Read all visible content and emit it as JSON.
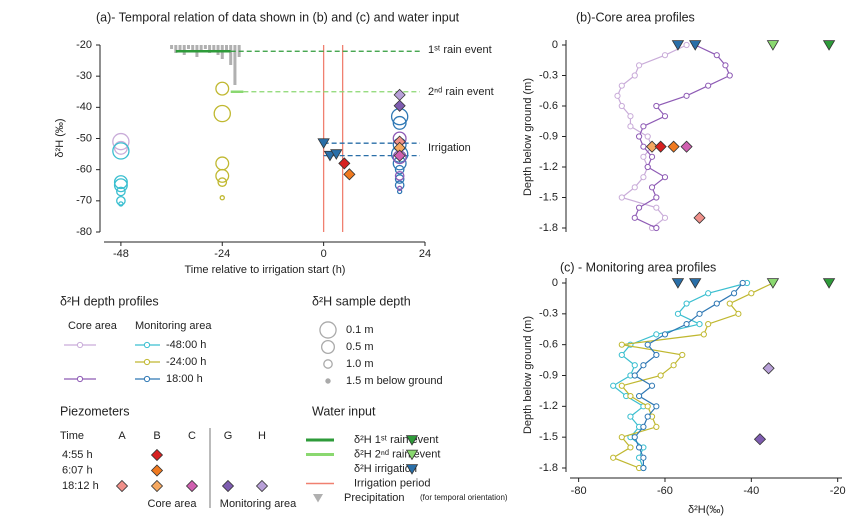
{
  "chart_data": [
    {
      "type": "scatter",
      "title": "(a)- Temporal relation of data shown in (b) and (c) and water input",
      "xlabel": "Time relative to irrigation start (h)",
      "ylabel": "δ²H (‰)",
      "xlim": [
        -52,
        24
      ],
      "xticks": [
        -48,
        -24,
        0,
        24
      ],
      "ylim": [
        -80,
        -20
      ],
      "yticks": [
        -20,
        -30,
        -40,
        -50,
        -60,
        -70,
        -80
      ],
      "series": [
        {
          "color": "#c9acd9",
          "x": [
            -48,
            -48
          ],
          "values": [
            -51,
            -53
          ],
          "depth": [
            0.1,
            0.5
          ]
        },
        {
          "color": "#3bbfd0",
          "x": [
            -48,
            -48,
            -48,
            -48,
            -48,
            -48
          ],
          "values": [
            -54,
            -64,
            -65,
            -67,
            -70,
            -71
          ],
          "depth": [
            0.1,
            0.5,
            0.5,
            1.0,
            1.0,
            1.5
          ]
        },
        {
          "color": "#c0b830",
          "x": [
            -24,
            -24,
            -24,
            -24,
            -24,
            -24
          ],
          "values": [
            -34,
            -42,
            -58,
            -62,
            -64,
            -69
          ],
          "depth": [
            0.5,
            0.1,
            0.5,
            0.5,
            1.0,
            1.5
          ]
        },
        {
          "color": "#2f78b4",
          "x": [
            18,
            18,
            18,
            18,
            18,
            18,
            18,
            18,
            18
          ],
          "values": [
            -43,
            -45,
            -52,
            -55,
            -58,
            -60,
            -63,
            -65,
            -67
          ],
          "depth": [
            0.1,
            0.5,
            0.5,
            0.1,
            0.5,
            1.0,
            1.0,
            1.0,
            1.5
          ]
        },
        {
          "color": "#8e5bb5",
          "x": [
            18,
            18,
            18,
            18
          ],
          "values": [
            -50,
            -56,
            -62,
            -66
          ],
          "depth": [
            0.5,
            0.5,
            1.0,
            1.5
          ]
        }
      ],
      "markers": [
        {
          "marker": "triangle",
          "color": "#2a6fa8",
          "x": [
            0,
            1.5,
            3
          ],
          "values": [
            -51.5,
            -55.5,
            -55
          ]
        },
        {
          "marker": "diamond",
          "color": "#d62020",
          "x": [
            4.9
          ],
          "values": [
            -58
          ]
        },
        {
          "marker": "diamond",
          "color": "#f07a20",
          "x": [
            6.1
          ],
          "values": [
            -61.5
          ]
        },
        {
          "marker": "diamond",
          "color": "#b8a0d8",
          "x": [
            18
          ],
          "values": [
            -36
          ]
        },
        {
          "marker": "diamond",
          "color": "#7e5cb0",
          "x": [
            18
          ],
          "values": [
            -39.5
          ]
        },
        {
          "marker": "diamond",
          "color": "#f0908a",
          "x": [
            18
          ],
          "values": [
            -51
          ]
        },
        {
          "marker": "diamond",
          "color": "#f5a860",
          "x": [
            18
          ],
          "values": [
            -53
          ]
        },
        {
          "marker": "diamond",
          "color": "#d060b0",
          "x": [
            18
          ],
          "values": [
            -55.5
          ]
        }
      ],
      "rain_events": [
        {
          "label": "1ˢᵗ rain event",
          "color": "#2e9b3a",
          "value": -22,
          "x": [
            -35,
            -22
          ]
        },
        {
          "label": "2ⁿᵈ rain event",
          "color": "#8ad870",
          "value": -35,
          "x": [
            -22,
            -19
          ]
        }
      ],
      "irrigation": {
        "label": "Irrigation",
        "color": "#2a6fa8",
        "values": [
          -51.5,
          -55.5
        ]
      },
      "irrigation_period": {
        "color": "#f08070",
        "x": [
          0,
          4.5
        ]
      },
      "precipitation": {
        "color": "#b0b0b0",
        "x": [
          -36,
          -35,
          -34,
          -33,
          -32,
          -31,
          -30,
          -29,
          -28,
          -27,
          -26,
          -25,
          -24,
          -23,
          -22,
          -21,
          -20
        ],
        "values": [
          2,
          4,
          3,
          5,
          2,
          3,
          6,
          3,
          2,
          4,
          3,
          5,
          7,
          3,
          10,
          20,
          6
        ]
      }
    },
    {
      "type": "profile",
      "title": "(b)-Core area profiles",
      "ylabel": "Depth below ground (m)",
      "xlim": [
        -82,
        -19
      ],
      "ylim": [
        -1.8,
        0
      ],
      "yticks": [
        0,
        -0.3,
        -0.6,
        -0.9,
        -1.2,
        -1.5,
        -1.8
      ],
      "depth": [
        0,
        -0.1,
        -0.2,
        -0.3,
        -0.4,
        -0.5,
        -0.6,
        -0.7,
        -0.8,
        -0.9,
        -1,
        -1.1,
        -1.2,
        -1.3,
        -1.4,
        -1.5,
        -1.6,
        -1.7,
        -1.8
      ],
      "series": [
        {
          "color": "#c9acd9",
          "values": [
            -55,
            -60,
            -66,
            -67,
            -70,
            -71,
            -70,
            -68,
            -68,
            -64,
            -63,
            -65,
            -64,
            -65,
            -67,
            -70,
            -62,
            -60,
            -63
          ]
        },
        {
          "color": "#8e5bb5",
          "values": [
            -53,
            -48,
            -46,
            -45,
            -50,
            -55,
            -62,
            -60,
            -65,
            -66,
            -65,
            -63,
            -64,
            -60,
            -63,
            -62,
            -66,
            -67,
            -62
          ]
        }
      ],
      "markers": [
        {
          "marker": "triangle",
          "color": "#2a6fa8",
          "depth": [
            0,
            0
          ],
          "values": [
            -57,
            -53
          ]
        },
        {
          "marker": "triangle",
          "color": "#8ad870",
          "depth": [
            0
          ],
          "values": [
            -35
          ]
        },
        {
          "marker": "triangle",
          "color": "#2e9b3a",
          "depth": [
            0
          ],
          "values": [
            -22
          ]
        },
        {
          "marker": "diamond",
          "color": "#f5a860",
          "depth": [
            -1
          ],
          "values": [
            -63
          ]
        },
        {
          "marker": "diamond",
          "color": "#d62020",
          "depth": [
            -1
          ],
          "values": [
            -61
          ]
        },
        {
          "marker": "diamond",
          "color": "#f07a20",
          "depth": [
            -1
          ],
          "values": [
            -58
          ]
        },
        {
          "marker": "diamond",
          "color": "#d060b0",
          "depth": [
            -1
          ],
          "values": [
            -55
          ]
        },
        {
          "marker": "diamond",
          "color": "#f0908a",
          "depth": [
            -1.7
          ],
          "values": [
            -52
          ]
        }
      ]
    },
    {
      "type": "profile",
      "title": "(c) - Monitoring area profiles",
      "ylabel": "Depth below ground (m)",
      "xlabel": "δ²H(‰)",
      "xlim": [
        -82,
        -19
      ],
      "xticks": [
        -80,
        -60,
        -40,
        -20
      ],
      "ylim": [
        -1.8,
        0
      ],
      "yticks": [
        0,
        -0.3,
        -0.6,
        -0.9,
        -1.2,
        -1.5,
        -1.8
      ],
      "depth": [
        0,
        -0.1,
        -0.2,
        -0.3,
        -0.4,
        -0.5,
        -0.6,
        -0.7,
        -0.8,
        -0.9,
        -1,
        -1.1,
        -1.2,
        -1.3,
        -1.4,
        -1.5,
        -1.6,
        -1.7,
        -1.8
      ],
      "series": [
        {
          "color": "#3bbfd0",
          "values": [
            -41,
            -50,
            -55,
            -57,
            -52,
            -62,
            -68,
            -70,
            -67,
            -68,
            -72,
            -69,
            -65,
            -68,
            -66,
            -68,
            -65,
            -66,
            -65
          ]
        },
        {
          "color": "#c0b830",
          "values": [
            -35,
            -40,
            -45,
            -43,
            -50,
            -51,
            -70,
            -56,
            -58,
            -61,
            -70,
            -68,
            -64,
            -63,
            -62,
            -70,
            -68,
            -72,
            -66
          ]
        },
        {
          "color": "#2f78b4",
          "values": [
            -42,
            -44,
            -48,
            -52,
            -55,
            -60,
            -64,
            -62,
            -65,
            -67,
            -63,
            -66,
            -62,
            -64,
            -65,
            -67,
            -66,
            -65,
            -65
          ]
        }
      ],
      "markers": [
        {
          "marker": "triangle",
          "color": "#2a6fa8",
          "depth": [
            0,
            0
          ],
          "values": [
            -57,
            -53
          ]
        },
        {
          "marker": "triangle",
          "color": "#8ad870",
          "depth": [
            0
          ],
          "values": [
            -35
          ]
        },
        {
          "marker": "triangle",
          "color": "#2e9b3a",
          "depth": [
            0
          ],
          "values": [
            -22
          ]
        },
        {
          "marker": "diamond",
          "color": "#b8a0d8",
          "depth": [
            -0.83
          ],
          "values": [
            -36
          ]
        },
        {
          "marker": "diamond",
          "color": "#7e5cb0",
          "depth": [
            -1.52
          ],
          "values": [
            -38
          ]
        }
      ]
    }
  ],
  "legends": {
    "depth_profiles": {
      "title": "δ²H depth profiles",
      "columns": [
        "Core area",
        "Monitoring area"
      ],
      "rows": [
        {
          "label": "-48:00 h",
          "core_color": "#c9acd9",
          "monitoring_color": "#3bbfd0"
        },
        {
          "label": "-24:00 h",
          "core_color": null,
          "monitoring_color": "#c0b830"
        },
        {
          "label": "18:00 h",
          "core_color": "#8e5bb5",
          "monitoring_color": "#2f78b4"
        }
      ]
    },
    "sample_depth": {
      "title": "δ²H sample depth",
      "items": [
        {
          "label": "0.1 m",
          "depth": 0.1
        },
        {
          "label": "0.5 m",
          "depth": 0.5
        },
        {
          "label": "1.0 m",
          "depth": 1.0
        },
        {
          "label": "1.5 m below ground",
          "depth": 1.5
        }
      ]
    },
    "piezometers": {
      "title": "Piezometers",
      "header": "Time",
      "columns": [
        "A",
        "B",
        "C",
        "G",
        "H"
      ],
      "rows": [
        {
          "label": "4:55 h",
          "colors": [
            null,
            "#d62020",
            null,
            null,
            null
          ]
        },
        {
          "label": "6:07 h",
          "colors": [
            null,
            "#f07a20",
            null,
            null,
            null
          ]
        },
        {
          "label": "18:12 h",
          "colors": [
            "#f0908a",
            "#f5a860",
            "#d060b0",
            "#7e5cb0",
            "#b8a0d8"
          ]
        }
      ],
      "groups": [
        "Core area",
        "Monitoring area"
      ]
    },
    "water_input": {
      "title": "Water input",
      "items": [
        {
          "label": "δ²H  1ˢᵗ rain event",
          "color": "#2e9b3a",
          "line": "solid",
          "marker": "triangle"
        },
        {
          "label": "δ²H  2ⁿᵈ rain event",
          "color": "#8ad870",
          "line": "solid",
          "marker": "triangle"
        },
        {
          "label": "δ²H  irrigation",
          "color": "#2a6fa8",
          "line": null,
          "marker": "triangle"
        },
        {
          "label": "Irrigation period",
          "color": "#f08070",
          "line": "solid",
          "marker": null
        },
        {
          "label": "Precipitation",
          "color": "#b0b0b0",
          "line": null,
          "marker": "triangle-down"
        }
      ],
      "note": "(for temporal orientation)"
    }
  }
}
